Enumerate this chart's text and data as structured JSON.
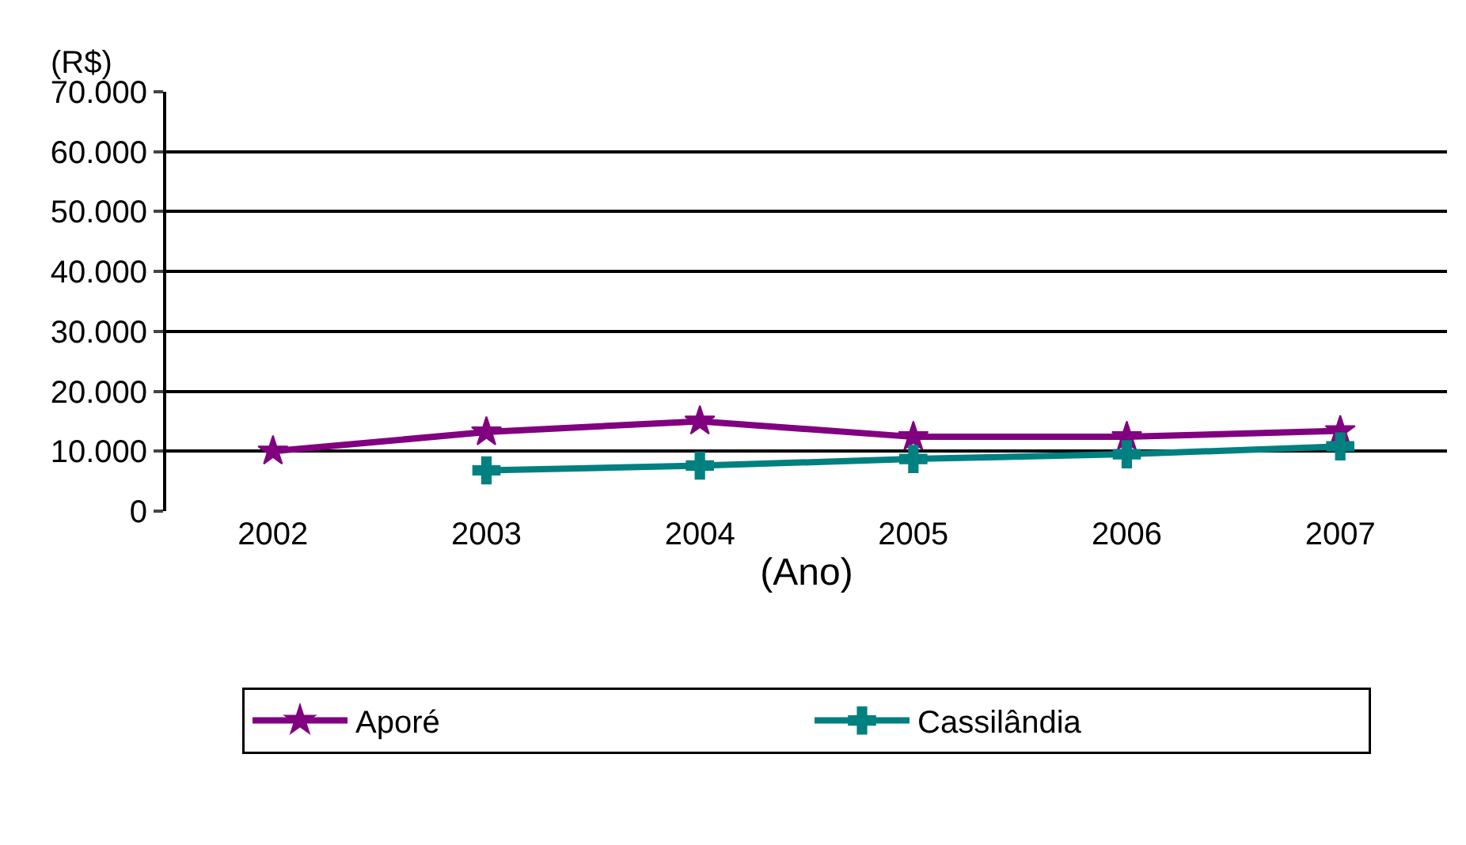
{
  "chart_data": {
    "type": "line",
    "xlabel": "(Ano)",
    "ylabel": "(R$)",
    "categories": [
      "2002",
      "2003",
      "2004",
      "2005",
      "2006",
      "2007"
    ],
    "series": [
      {
        "name": "Aporé",
        "color": "#800080",
        "marker": "star",
        "values": [
          10000,
          13200,
          15000,
          12400,
          12400,
          13400
        ]
      },
      {
        "name": "Cassilândia",
        "color": "#008080",
        "marker": "cross",
        "values": [
          null,
          6800,
          7600,
          8700,
          9500,
          10800
        ]
      }
    ],
    "ylim": [
      0,
      70000
    ],
    "yticks": [
      0,
      {
        "value": 10000,
        "label": "10.000"
      },
      {
        "value": 20000,
        "label": "20.000"
      },
      {
        "value": 30000,
        "label": "30.000"
      },
      {
        "value": 40000,
        "label": "40.000"
      },
      {
        "value": 50000,
        "label": "50.000"
      },
      {
        "value": 60000,
        "label": "60.000"
      },
      {
        "value": 70000,
        "label": "70.000"
      }
    ],
    "grid": "y",
    "legend": "bottom",
    "line_style": "solid"
  }
}
